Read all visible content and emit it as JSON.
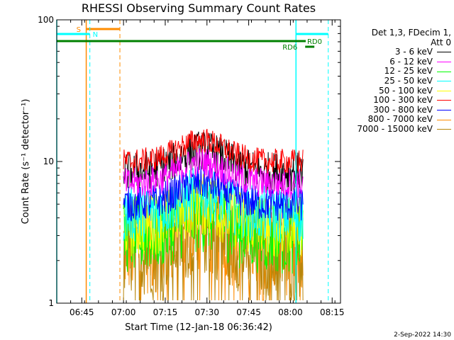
{
  "chart_data": {
    "type": "line",
    "title": "RHESSI Observing Summary Count Rates",
    "xlabel": "Start Time (12-Jan-18 06:36:42)",
    "ylabel": "Count Rate (s⁻¹ detector⁻¹)",
    "yscale": "log",
    "ylim": [
      1,
      100
    ],
    "xlim_minutes_after_0636": [
      0,
      102
    ],
    "xtick_labels": [
      "06:45",
      "07:00",
      "07:15",
      "07:30",
      "07:45",
      "08:00",
      "08:15"
    ],
    "ytick_labels": [
      "1",
      "10",
      "100"
    ],
    "legend_header": [
      "Det 1,3, FDecim 1,",
      "Att 0"
    ],
    "legend_placement": "right",
    "series": [
      {
        "name": "3 - 6 keV",
        "color": "#000000",
        "typical_rate": 8.5
      },
      {
        "name": "6 - 12 keV",
        "color": "#ff00ff",
        "typical_rate": 7.0
      },
      {
        "name": "12 - 25 keV",
        "color": "#00ff00",
        "typical_rate": 3.0
      },
      {
        "name": "25 - 50 keV",
        "color": "#00ffff",
        "typical_rate": 4.2
      },
      {
        "name": "50 - 100 keV",
        "color": "#ffff00",
        "typical_rate": 3.5
      },
      {
        "name": "100 - 300 keV",
        "color": "#ff0000",
        "typical_rate": 10.0
      },
      {
        "name": "300 - 800 keV",
        "color": "#0000ff",
        "typical_rate": 5.0
      },
      {
        "name": "800 - 7000 keV",
        "color": "#ff8c00",
        "typical_rate": 2.5
      },
      {
        "name": "7000 - 15000 keV",
        "color": "#b8860b",
        "typical_rate": 2.3
      }
    ],
    "markers": [
      {
        "label": "S",
        "color": "#ff8c00"
      },
      {
        "label": "N",
        "color": "#00ffff"
      },
      {
        "label": "RD0",
        "color": "#008000"
      },
      {
        "label": "RD6",
        "color": "#008000"
      }
    ]
  },
  "footer": {
    "date": "2-Sep-2022 14:30"
  }
}
